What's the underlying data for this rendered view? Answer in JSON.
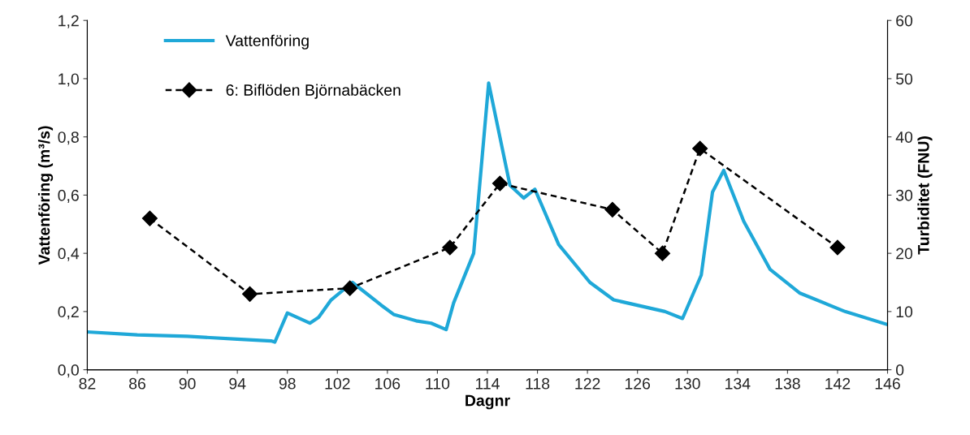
{
  "chart_data": {
    "type": "line",
    "xlabel": "Dagnr",
    "ylabel": "Vattenföring (m³/s)",
    "y2label": "Turbiditet (FNU)",
    "xlim": [
      82,
      146
    ],
    "xticks": [
      82,
      86,
      90,
      94,
      98,
      102,
      106,
      110,
      114,
      118,
      122,
      126,
      130,
      134,
      138,
      142,
      146
    ],
    "ylim": [
      0,
      1.2
    ],
    "yticks": [
      {
        "value": 0,
        "label": "0,0"
      },
      {
        "value": 0.2,
        "label": "0,2"
      },
      {
        "value": 0.4,
        "label": "0,4"
      },
      {
        "value": 0.6,
        "label": "0,6"
      },
      {
        "value": 0.8,
        "label": "0,8"
      },
      {
        "value": 1.0,
        "label": "1,0"
      },
      {
        "value": 1.2,
        "label": "1,2"
      }
    ],
    "y2lim": [
      0,
      60
    ],
    "y2ticks": [
      0,
      10,
      20,
      30,
      40,
      50,
      60
    ],
    "grid": false,
    "legend": "top left",
    "series": [
      {
        "name": "Vattenföring",
        "color": "#1fa8d8",
        "marker": "none",
        "line_style": "solid",
        "x": [
          82,
          86,
          90,
          94,
          96.7,
          97,
          98,
          99.8,
          100.5,
          101.5,
          103.2,
          105.5,
          106.5,
          108.3,
          109.5,
          110.7,
          111.3,
          112.9,
          114.1,
          115.8,
          116.9,
          117.8,
          119.7,
          122.2,
          124.1,
          128.2,
          129.6,
          131.1,
          132,
          132.9,
          134.5,
          136.6,
          139,
          142.6,
          146
        ],
        "values": [
          0.13,
          0.12,
          0.115,
          0.105,
          0.099,
          0.095,
          0.195,
          0.16,
          0.18,
          0.24,
          0.3,
          0.222,
          0.19,
          0.168,
          0.16,
          0.138,
          0.23,
          0.4,
          0.985,
          0.634,
          0.59,
          0.62,
          0.43,
          0.3,
          0.24,
          0.2,
          0.176,
          0.325,
          0.61,
          0.685,
          0.51,
          0.345,
          0.263,
          0.2,
          0.155
        ]
      },
      {
        "name": "6: Biflöden Björnabäcken",
        "color": "#000000",
        "axis": "y2",
        "marker": "diamond",
        "line_style": "dashed",
        "x": [
          87,
          95,
          103,
          111,
          115,
          124,
          128,
          131,
          142
        ],
        "values": [
          26,
          13,
          14,
          21,
          32,
          27.5,
          20,
          38,
          21
        ]
      }
    ]
  }
}
